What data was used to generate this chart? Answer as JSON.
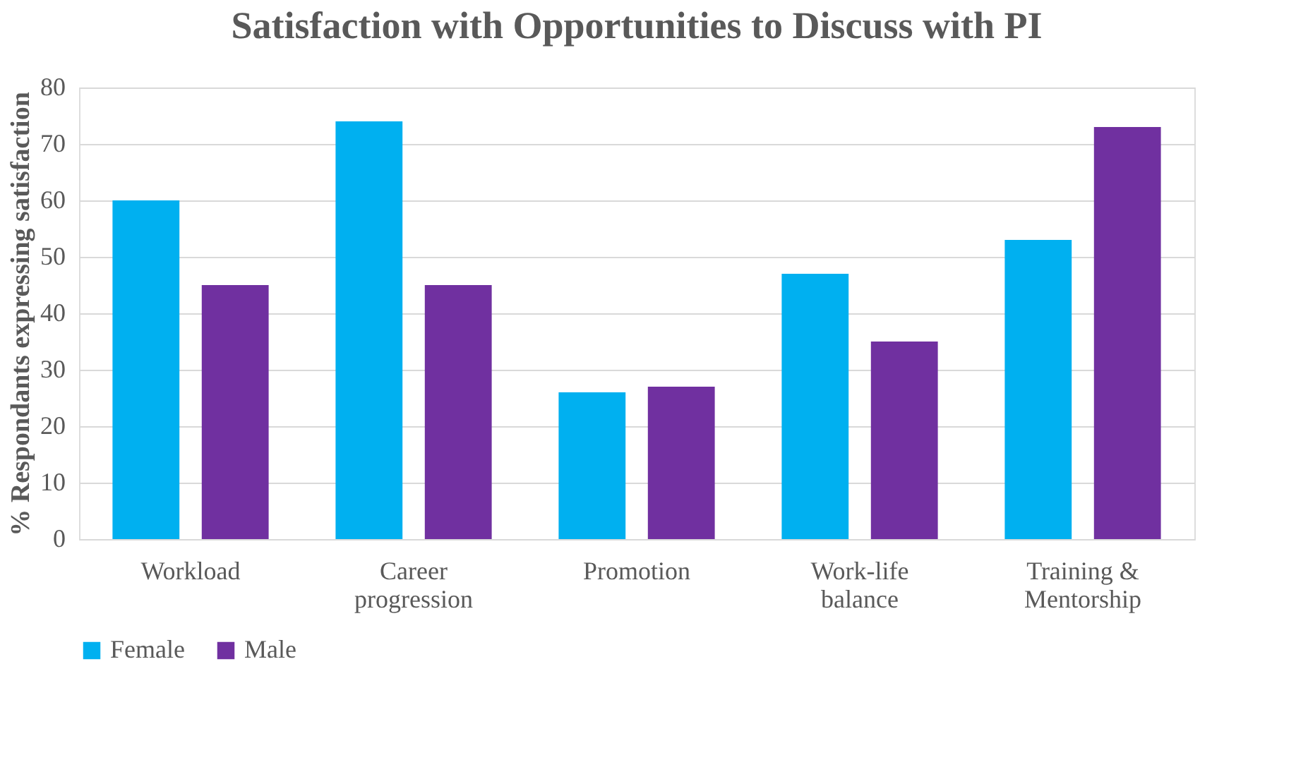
{
  "chart_data": {
    "type": "bar",
    "title": "Satisfaction with Opportunities to Discuss with PI",
    "ylabel": "% Respondants expressing satisfaction",
    "categories": [
      "Workload",
      "Career progression",
      "Promotion",
      "Work-life balance",
      "Training & Mentorship"
    ],
    "series": [
      {
        "name": "Female",
        "color": "#00b0f0",
        "values": [
          60,
          74,
          26,
          47,
          53
        ]
      },
      {
        "name": "Male",
        "color": "#7030a0",
        "values": [
          45,
          45,
          27,
          35,
          73
        ]
      }
    ],
    "ylim": [
      0,
      80
    ],
    "yticks": [
      0,
      10,
      20,
      30,
      40,
      50,
      60,
      70,
      80
    ],
    "grid": "y",
    "legend": "bottom"
  }
}
